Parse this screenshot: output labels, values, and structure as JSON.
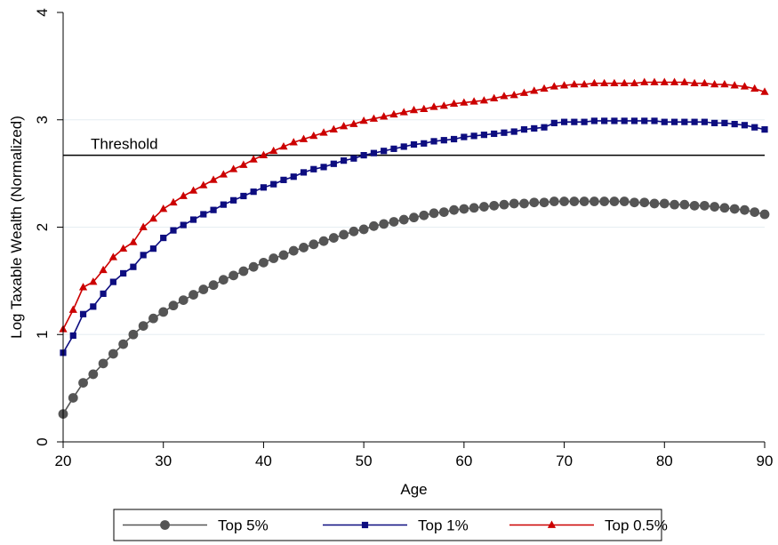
{
  "chart_data": {
    "type": "line",
    "title": "",
    "xlabel": "Age",
    "ylabel": "Log Taxable Wealth (Normalized)",
    "xlim": [
      20,
      90
    ],
    "ylim": [
      0,
      4
    ],
    "xticks": [
      20,
      30,
      40,
      50,
      60,
      70,
      80,
      90
    ],
    "yticks": [
      0,
      1,
      2,
      3,
      4
    ],
    "grid": "horizontal",
    "legend": "bottom",
    "threshold": {
      "label": "Threshold",
      "value": 2.67
    },
    "x": [
      20,
      21,
      22,
      23,
      24,
      25,
      26,
      27,
      28,
      29,
      30,
      31,
      32,
      33,
      34,
      35,
      36,
      37,
      38,
      39,
      40,
      41,
      42,
      43,
      44,
      45,
      46,
      47,
      48,
      49,
      50,
      51,
      52,
      53,
      54,
      55,
      56,
      57,
      58,
      59,
      60,
      61,
      62,
      63,
      64,
      65,
      66,
      67,
      68,
      69,
      70,
      71,
      72,
      73,
      74,
      75,
      76,
      77,
      78,
      79,
      80,
      81,
      82,
      83,
      84,
      85,
      86,
      87,
      88,
      89,
      90
    ],
    "series": [
      {
        "name": "Top 5%",
        "marker": "circle",
        "color": "#555555",
        "values": [
          0.26,
          0.41,
          0.55,
          0.63,
          0.73,
          0.82,
          0.91,
          1.0,
          1.08,
          1.15,
          1.21,
          1.27,
          1.32,
          1.37,
          1.42,
          1.46,
          1.51,
          1.55,
          1.59,
          1.63,
          1.67,
          1.71,
          1.74,
          1.78,
          1.81,
          1.84,
          1.87,
          1.9,
          1.93,
          1.96,
          1.98,
          2.01,
          2.03,
          2.05,
          2.07,
          2.09,
          2.11,
          2.13,
          2.14,
          2.16,
          2.17,
          2.18,
          2.19,
          2.2,
          2.21,
          2.22,
          2.22,
          2.23,
          2.23,
          2.24,
          2.24,
          2.24,
          2.24,
          2.24,
          2.24,
          2.24,
          2.24,
          2.23,
          2.23,
          2.22,
          2.22,
          2.21,
          2.21,
          2.2,
          2.2,
          2.19,
          2.18,
          2.17,
          2.16,
          2.14,
          2.12
        ]
      },
      {
        "name": "Top 1%",
        "marker": "square",
        "color": "#0d0d80",
        "values": [
          0.83,
          0.99,
          1.19,
          1.26,
          1.38,
          1.49,
          1.57,
          1.63,
          1.74,
          1.8,
          1.9,
          1.97,
          2.02,
          2.07,
          2.12,
          2.16,
          2.21,
          2.25,
          2.29,
          2.33,
          2.37,
          2.4,
          2.44,
          2.47,
          2.51,
          2.54,
          2.56,
          2.59,
          2.62,
          2.64,
          2.67,
          2.69,
          2.71,
          2.73,
          2.75,
          2.77,
          2.78,
          2.8,
          2.81,
          2.82,
          2.84,
          2.85,
          2.86,
          2.87,
          2.88,
          2.89,
          2.91,
          2.92,
          2.93,
          2.97,
          2.98,
          2.98,
          2.98,
          2.99,
          2.99,
          2.99,
          2.99,
          2.99,
          2.99,
          2.99,
          2.98,
          2.98,
          2.98,
          2.98,
          2.98,
          2.97,
          2.97,
          2.96,
          2.95,
          2.93,
          2.91
        ]
      },
      {
        "name": "Top 0.5%",
        "marker": "triangle",
        "color": "#cc0000",
        "values": [
          1.05,
          1.23,
          1.44,
          1.49,
          1.6,
          1.72,
          1.8,
          1.86,
          2.0,
          2.08,
          2.17,
          2.23,
          2.29,
          2.34,
          2.39,
          2.44,
          2.49,
          2.54,
          2.58,
          2.63,
          2.67,
          2.71,
          2.75,
          2.79,
          2.82,
          2.85,
          2.88,
          2.91,
          2.94,
          2.96,
          2.99,
          3.01,
          3.03,
          3.05,
          3.07,
          3.09,
          3.1,
          3.12,
          3.13,
          3.15,
          3.16,
          3.17,
          3.18,
          3.2,
          3.22,
          3.23,
          3.25,
          3.27,
          3.29,
          3.31,
          3.32,
          3.33,
          3.33,
          3.34,
          3.34,
          3.34,
          3.34,
          3.34,
          3.35,
          3.35,
          3.35,
          3.35,
          3.35,
          3.34,
          3.34,
          3.33,
          3.33,
          3.32,
          3.31,
          3.29,
          3.26
        ]
      }
    ]
  }
}
